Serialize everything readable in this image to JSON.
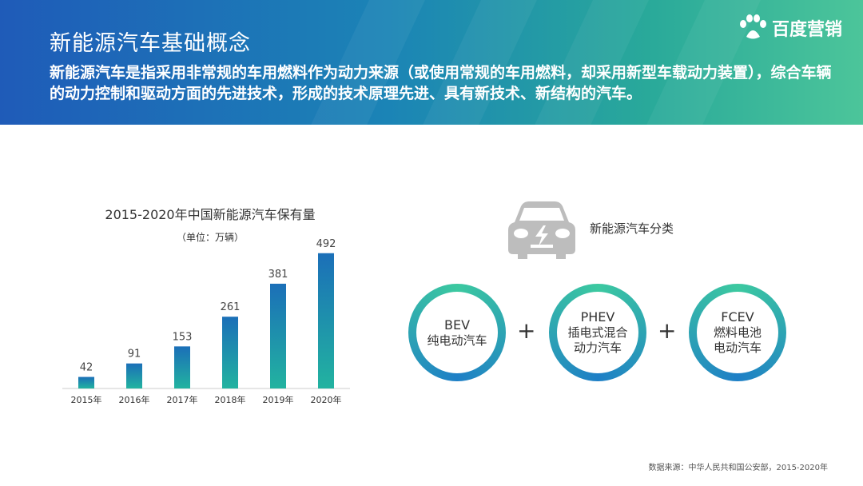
{
  "header": {
    "title": "新能源汽车基础概念",
    "intro": "新能源汽车是指采用非常规的车用燃料作为动力来源（或使用常规的车用燃料，却采用新型车载动力装置），综合车辆的动力控制和驱动方面的先进技术，形成的技术原理先进、具有新技术、新结构的汽车。",
    "brand": "百度营销"
  },
  "chart_data": {
    "type": "bar",
    "title": "2015-2020年中国新能源汽车保有量",
    "unit": "（单位：万辆）",
    "categories": [
      "2015年",
      "2016年",
      "2017年",
      "2018年",
      "2019年",
      "2020年"
    ],
    "values": [
      42,
      91,
      153,
      261,
      381,
      492
    ],
    "ylim": [
      0,
      500
    ],
    "grid": false,
    "colors": {
      "bar_top": "#1b6fb8",
      "bar_bottom": "#22b3a0"
    }
  },
  "classification": {
    "title": "新能源汽车分类",
    "items": [
      {
        "abbr": "BEV",
        "lines": [
          "纯电动汽车"
        ]
      },
      {
        "abbr": "PHEV",
        "lines": [
          "插电式混合",
          "动力汽车"
        ]
      },
      {
        "abbr": "FCEV",
        "lines": [
          "燃料电池",
          "电动汽车"
        ]
      }
    ],
    "plus": "+",
    "car_icon": "electric-car-icon"
  },
  "footer": {
    "source": "数据来源：中华人民共和国公安部，2015-2020年"
  }
}
